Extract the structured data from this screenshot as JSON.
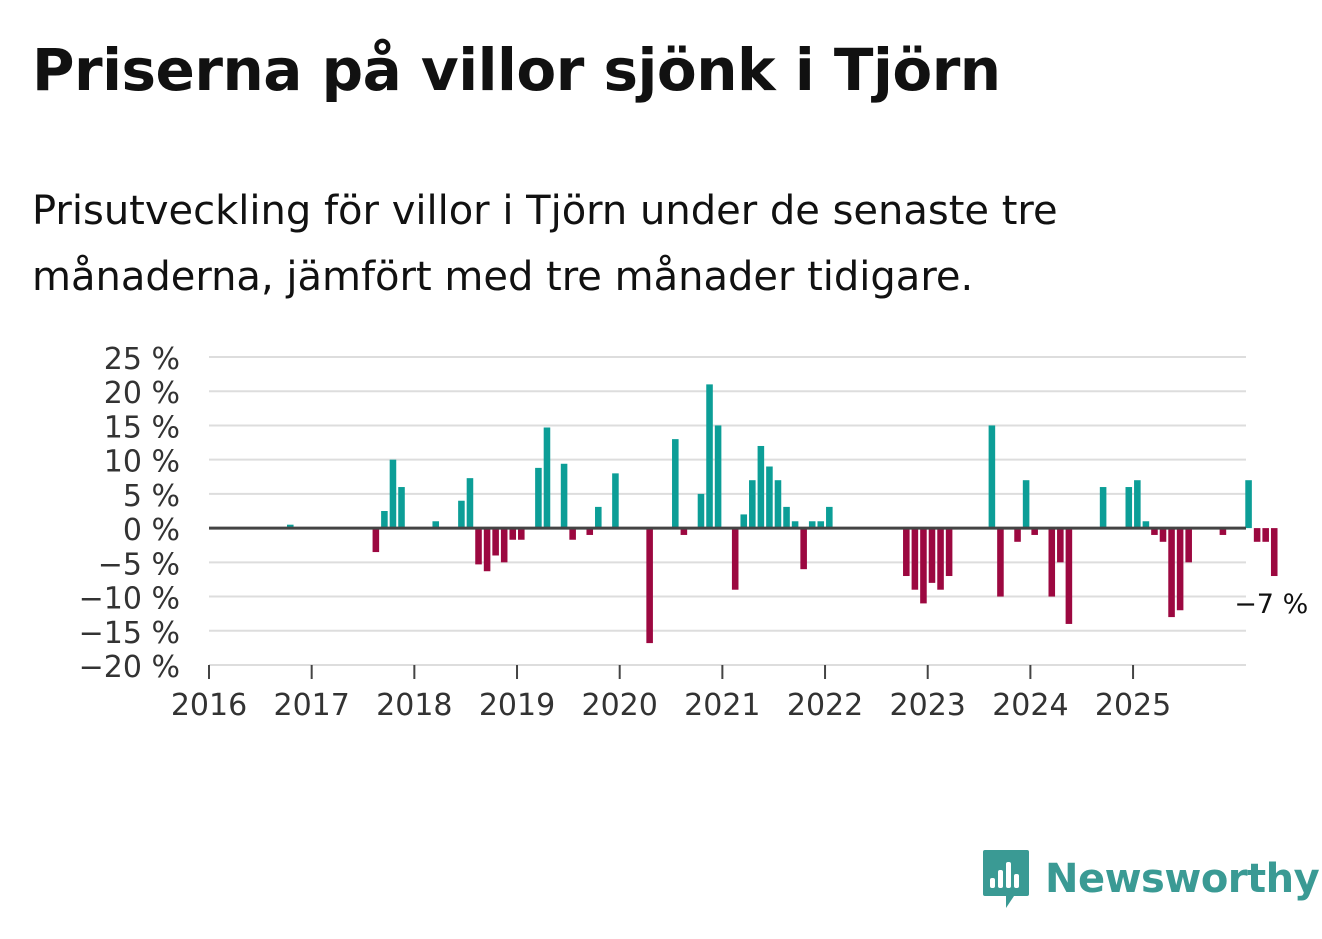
{
  "title": "Priserna på villor sjönk i Tjörn",
  "subtitle": "Prisutveckling för villor i Tjörn under de senaste tre månaderna, jämfört med tre månader tidigare.",
  "brand": {
    "name": "Newsworthy",
    "icon": "bar-chart-speech-bubble-icon"
  },
  "colors": {
    "positive": "#0c9e97",
    "negative": "#9c0840",
    "grid": "#dddddd",
    "zero": "#444444",
    "text": "#333333",
    "brand": "#3a9a94"
  },
  "chart_data": {
    "type": "bar",
    "title": "Priserna på villor sjönk i Tjörn",
    "xlabel": "",
    "ylabel": "",
    "ylim": [
      -20,
      25
    ],
    "yticks": [
      25,
      20,
      15,
      10,
      5,
      0,
      -5,
      -10,
      -15,
      -20
    ],
    "ytick_labels": [
      "25 %",
      "20 %",
      "15 %",
      "10 %",
      "5 %",
      "0 %",
      "−5 %",
      "−10 %",
      "−15 %",
      "−20 %"
    ],
    "xtick_labels": [
      "2016",
      "2017",
      "2018",
      "2019",
      "2020",
      "2021",
      "2022",
      "2023",
      "2024",
      "2025"
    ],
    "x_start": "2016-01",
    "last_value_label": "−7 %",
    "series": [
      {
        "name": "Prisutveckling",
        "values": [
          0,
          0,
          0,
          0,
          0,
          0,
          0,
          0,
          0,
          0.5,
          0,
          0,
          0,
          0,
          0,
          0,
          0,
          0,
          0,
          -3.5,
          2.5,
          10,
          6,
          0,
          0,
          0,
          1,
          0,
          0,
          4,
          7.3,
          -5.3,
          -6.3,
          -4,
          -5,
          -1.7,
          -1.7,
          0,
          8.8,
          14.7,
          0,
          9.4,
          -1.7,
          0,
          -1,
          3.1,
          0,
          8,
          0,
          0,
          0,
          -16.8,
          0,
          0,
          13,
          -1,
          0,
          5,
          21,
          15,
          0,
          -9,
          2,
          7,
          12,
          9,
          7,
          3.1,
          1,
          -6,
          1,
          1,
          3.1,
          0,
          0,
          0,
          0,
          0,
          0,
          0,
          0,
          -7,
          -9,
          -11,
          -8,
          -9,
          -7,
          0,
          0,
          0,
          0,
          15,
          -10,
          0,
          -2,
          7,
          -1,
          0,
          -10,
          -5,
          -14,
          0,
          0,
          0,
          6,
          0,
          0,
          6,
          7,
          1,
          -1,
          -2,
          -13,
          -12,
          -5,
          0,
          0,
          0,
          -1,
          0,
          0,
          7,
          -2,
          -2,
          -7
        ]
      }
    ]
  }
}
